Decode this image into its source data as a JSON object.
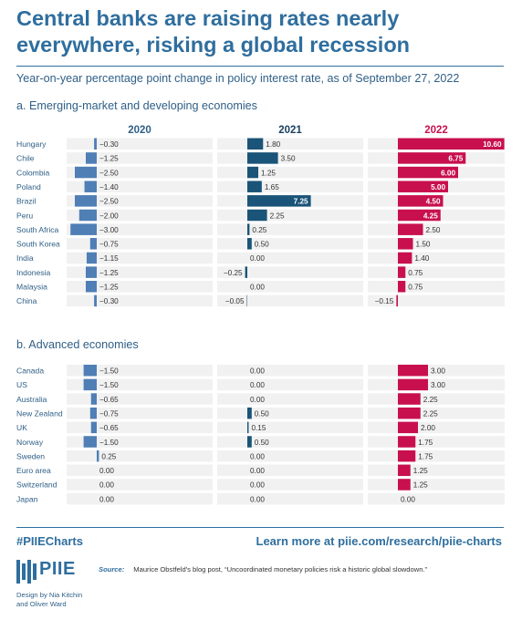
{
  "title": "Central banks are raising rates nearly everywhere, risking a global recession",
  "subtitle": "Year-on-year percentage point change in policy interest rate, as of September 27, 2022",
  "colors": {
    "y2020": "#4f7fb5",
    "y2021": "#1a5478",
    "y2022": "#c8104f",
    "bg": "#f1f1f1",
    "accent": "#2f6e9e"
  },
  "footer": {
    "hashtag": "#PIIECharts",
    "link": "Learn more at piie.com/research/piie-charts",
    "logo": "PIIE",
    "credit": "Design by Nia Kitchin and Oliver Ward",
    "source_label": "Source:",
    "source_text": "Maurice Obstfeld's blog post, “Uncoordinated monetary policies risk a historic global slowdown.”"
  },
  "chart_data": [
    {
      "type": "bar",
      "title": "a. Emerging-market and developing economies",
      "categories": [
        "Hungary",
        "Chile",
        "Colombia",
        "Poland",
        "Brazil",
        "Peru",
        "South Africa",
        "South Korea",
        "India",
        "Indonesia",
        "Malaysia",
        "China"
      ],
      "series": [
        {
          "name": "2020",
          "values": [
            -0.3,
            -1.25,
            -2.5,
            -1.4,
            -2.5,
            -2.0,
            -3.0,
            -0.75,
            -1.15,
            -1.25,
            -1.25,
            -0.3
          ],
          "labels": [
            "−0.30",
            "−1.25",
            "−2.50",
            "−1.40",
            "−2.50",
            "−2.00",
            "−3.00",
            "−0.75",
            "−1.15",
            "−1.25",
            "−1.25",
            "−0.30"
          ]
        },
        {
          "name": "2021",
          "values": [
            1.8,
            3.5,
            1.25,
            1.65,
            7.25,
            2.25,
            0.25,
            0.5,
            0.0,
            -0.25,
            0.0,
            -0.05
          ],
          "labels": [
            "1.80",
            "3.50",
            "1.25",
            "1.65",
            "7.25",
            "2.25",
            "0.25",
            "0.50",
            "0.00",
            "−0.25",
            "0.00",
            "−0.05"
          ]
        },
        {
          "name": "2022",
          "values": [
            10.6,
            6.75,
            6.0,
            5.0,
            4.5,
            4.25,
            2.5,
            1.5,
            1.4,
            0.75,
            0.75,
            -0.15
          ],
          "labels": [
            "10.60",
            "6.75",
            "6.00",
            "5.00",
            "4.50",
            "4.25",
            "2.50",
            "1.50",
            "1.40",
            "0.75",
            "0.75",
            "−0.15"
          ]
        }
      ]
    },
    {
      "type": "bar",
      "title": "b. Advanced economies",
      "categories": [
        "Canada",
        "US",
        "Australia",
        "New Zealand",
        "UK",
        "Norway",
        "Sweden",
        "Euro area",
        "Switzerland",
        "Japan"
      ],
      "series": [
        {
          "name": "2020",
          "values": [
            -1.5,
            -1.5,
            -0.65,
            -0.75,
            -0.65,
            -1.5,
            0.25,
            0.0,
            0.0,
            0.0
          ],
          "labels": [
            "−1.50",
            "−1.50",
            "−0.65",
            "−0.75",
            "−0.65",
            "−1.50",
            "0.25",
            "0.00",
            "0.00",
            "0.00"
          ]
        },
        {
          "name": "2021",
          "values": [
            0.0,
            0.0,
            0.0,
            0.5,
            0.15,
            0.5,
            0.0,
            0.0,
            0.0,
            0.0
          ],
          "labels": [
            "0.00",
            "0.00",
            "0.00",
            "0.50",
            "0.15",
            "0.50",
            "0.00",
            "0.00",
            "0.00",
            "0.00"
          ]
        },
        {
          "name": "2022",
          "values": [
            3.0,
            3.0,
            2.25,
            2.25,
            2.0,
            1.75,
            1.75,
            1.25,
            1.25,
            0.0
          ],
          "labels": [
            "3.00",
            "3.00",
            "2.25",
            "2.25",
            "2.00",
            "1.75",
            "1.75",
            "1.25",
            "1.25",
            "0.00"
          ]
        }
      ]
    }
  ]
}
